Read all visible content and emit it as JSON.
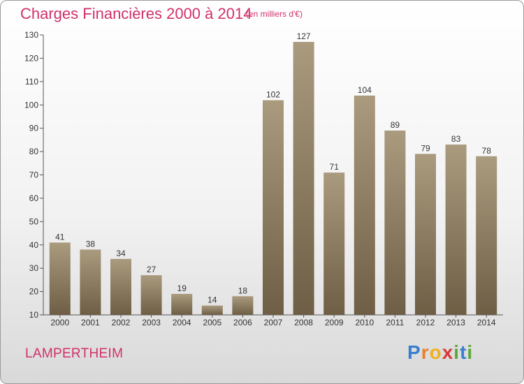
{
  "title": "Charges Financières 2000 à 2014",
  "subtitle": "(en milliers d'€)",
  "commune": "LAMPERTHEIM",
  "logo": {
    "text": "Proxiti",
    "letters": [
      {
        "ch": "P",
        "color": "#3a7fcf"
      },
      {
        "ch": "r",
        "color": "#e8802a"
      },
      {
        "ch": "o",
        "color": "#f0b020"
      },
      {
        "ch": "x",
        "color": "#d83a3a"
      },
      {
        "ch": "i",
        "color": "#5aa83a"
      },
      {
        "ch": "t",
        "color": "#3a7fcf"
      },
      {
        "ch": "i",
        "color": "#5aa83a"
      }
    ]
  },
  "colors": {
    "bar_top": "#aa9a7e",
    "bar_bottom": "#6e5e45",
    "accent_text": "#d1306b"
  },
  "chart_data": {
    "type": "bar",
    "title": "Charges Financières 2000 à 2014",
    "subtitle": "(en milliers d'€)",
    "xlabel": "",
    "ylabel": "",
    "categories": [
      "2000",
      "2001",
      "2002",
      "2003",
      "2004",
      "2005",
      "2006",
      "2007",
      "2008",
      "2009",
      "2010",
      "2011",
      "2012",
      "2013",
      "2014"
    ],
    "values": [
      41,
      38,
      34,
      27,
      19,
      14,
      18,
      102,
      127,
      71,
      104,
      89,
      79,
      83,
      78
    ],
    "ylim": [
      10,
      130
    ],
    "yticks": [
      10,
      20,
      30,
      40,
      50,
      60,
      70,
      80,
      90,
      100,
      110,
      120,
      130
    ],
    "grid": false,
    "data_labels": true
  }
}
